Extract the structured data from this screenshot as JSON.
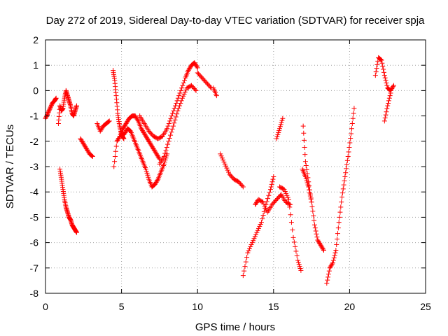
{
  "chart_data": {
    "type": "scatter",
    "title": "Day 272 of 2019, Sidereal Day-to-day VTEC variation (SDTVAR) for receiver spja",
    "xlabel": "GPS time / hours",
    "ylabel": "SDTVAR / TECUs",
    "xlim": [
      0,
      25
    ],
    "ylim": [
      -8,
      2
    ],
    "xticks": [
      "0",
      "5",
      "10",
      "15",
      "20",
      "25"
    ],
    "yticks": [
      "2",
      "1",
      "0",
      "-1",
      "-2",
      "-3",
      "-4",
      "-5",
      "-6",
      "-7",
      "-8"
    ],
    "grid": true,
    "marker": "+",
    "color": "#ff0000",
    "series": [
      {
        "name": "s1",
        "x": [
          0.0,
          0.15,
          0.3,
          0.45,
          0.6,
          0.7
        ],
        "y": [
          -1.1,
          -0.9,
          -0.7,
          -0.5,
          -0.4,
          -0.3
        ]
      },
      {
        "name": "s2",
        "x": [
          0.85,
          0.95,
          1.05,
          1.15,
          1.25,
          1.35,
          1.45,
          1.55,
          1.65,
          1.75,
          1.85,
          1.95,
          2.05
        ],
        "y": [
          -1.3,
          -0.6,
          -0.8,
          -0.7,
          -0.3,
          0.0,
          -0.2,
          -0.4,
          -0.6,
          -0.9,
          -1.0,
          -0.8,
          -0.6
        ]
      },
      {
        "name": "s3",
        "x": [
          0.95,
          1.05,
          1.15,
          1.25,
          1.35,
          1.45,
          1.55,
          1.65,
          1.75,
          1.85,
          1.95,
          2.05
        ],
        "y": [
          -3.1,
          -3.5,
          -3.9,
          -4.3,
          -4.6,
          -4.8,
          -5.0,
          -5.1,
          -5.3,
          -5.4,
          -5.5,
          -5.6
        ]
      },
      {
        "name": "s4",
        "x": [
          2.3,
          2.5,
          2.7,
          2.9,
          3.1
        ],
        "y": [
          -1.9,
          -2.1,
          -2.3,
          -2.5,
          -2.6
        ]
      },
      {
        "name": "s5",
        "x": [
          3.4,
          3.6,
          3.8,
          4.0,
          4.2
        ],
        "y": [
          -1.3,
          -1.6,
          -1.4,
          -1.3,
          -1.2
        ]
      },
      {
        "name": "s6",
        "x": [
          4.45,
          4.55,
          4.65,
          4.75,
          4.85,
          4.95,
          5.05,
          5.15
        ],
        "y": [
          0.8,
          0.4,
          -0.2,
          -0.9,
          -1.3,
          -1.6,
          -1.8,
          -1.9
        ]
      },
      {
        "name": "s7",
        "x": [
          4.5,
          4.7,
          4.9,
          5.1,
          5.3,
          5.5,
          5.7,
          5.9,
          6.1,
          6.3,
          6.5,
          6.7,
          6.9,
          7.1,
          7.3,
          7.5
        ],
        "y": [
          -3.0,
          -2.0,
          -1.8,
          -1.5,
          -1.3,
          -1.1,
          -1.0,
          -1.0,
          -1.2,
          -1.5,
          -1.7,
          -1.9,
          -2.1,
          -2.3,
          -2.5,
          -2.7
        ]
      },
      {
        "name": "s8",
        "x": [
          5.0,
          5.2,
          5.4,
          5.6,
          5.8,
          6.0,
          6.2,
          6.4,
          6.6,
          6.8,
          7.0,
          7.2,
          7.4,
          7.6,
          7.8,
          8.0
        ],
        "y": [
          -1.8,
          -1.7,
          -1.5,
          -1.6,
          -1.9,
          -2.2,
          -2.5,
          -2.8,
          -3.1,
          -3.5,
          -3.8,
          -3.7,
          -3.5,
          -3.2,
          -2.9,
          -2.5
        ]
      },
      {
        "name": "s9",
        "x": [
          6.2,
          6.5,
          6.8,
          7.1,
          7.4,
          7.7,
          8.0,
          8.3,
          8.6,
          8.9,
          9.2,
          9.4,
          9.6,
          9.8,
          10.0
        ],
        "y": [
          -1.0,
          -1.3,
          -1.6,
          -1.8,
          -1.9,
          -1.8,
          -1.5,
          -1.0,
          -0.5,
          0.0,
          0.5,
          0.8,
          1.0,
          1.1,
          0.9
        ]
      },
      {
        "name": "s10",
        "x": [
          7.5,
          7.8,
          8.1,
          8.4,
          8.7,
          9.0,
          9.3,
          9.6,
          9.9
        ],
        "y": [
          -2.9,
          -2.6,
          -2.0,
          -1.4,
          -0.8,
          -0.3,
          0.1,
          0.2,
          0.0
        ]
      },
      {
        "name": "s11",
        "x": [
          10.0,
          10.3,
          10.6,
          10.9
        ],
        "y": [
          0.7,
          0.5,
          0.3,
          0.1
        ]
      },
      {
        "name": "s12",
        "x": [
          11.05,
          11.25
        ],
        "y": [
          0.1,
          -0.2
        ]
      },
      {
        "name": "s13",
        "x": [
          11.5,
          11.8,
          12.1,
          12.4,
          12.7,
          13.0
        ],
        "y": [
          -2.5,
          -2.9,
          -3.3,
          -3.5,
          -3.6,
          -3.8
        ]
      },
      {
        "name": "s14",
        "x": [
          13.0,
          13.3,
          13.6,
          13.9,
          14.2,
          14.5,
          14.8,
          15.0
        ],
        "y": [
          -7.3,
          -6.4,
          -6.0,
          -5.6,
          -5.2,
          -4.5,
          -3.9,
          -3.4
        ]
      },
      {
        "name": "s15",
        "x": [
          13.8,
          14.0,
          14.3,
          14.6,
          14.9,
          15.2,
          15.5,
          15.8,
          16.1
        ],
        "y": [
          -4.5,
          -4.3,
          -4.4,
          -4.8,
          -4.5,
          -4.3,
          -4.1,
          -4.4,
          -4.5
        ]
      },
      {
        "name": "s16",
        "x": [
          15.2,
          15.4,
          15.6
        ],
        "y": [
          -1.9,
          -1.5,
          -1.1
        ]
      },
      {
        "name": "s17",
        "x": [
          15.4,
          15.7,
          16.0,
          16.3,
          16.6,
          16.8
        ],
        "y": [
          -3.8,
          -3.9,
          -4.3,
          -5.8,
          -6.7,
          -7.1
        ]
      },
      {
        "name": "s18",
        "x": [
          16.95,
          17.1,
          17.3,
          17.5,
          17.7,
          17.9,
          18.1,
          18.3
        ],
        "y": [
          -1.4,
          -2.8,
          -3.6,
          -4.4,
          -5.3,
          -5.9,
          -6.1,
          -6.3
        ]
      },
      {
        "name": "s19",
        "x": [
          16.9,
          17.1,
          17.3,
          17.5
        ],
        "y": [
          -3.1,
          -3.4,
          -3.8,
          -4.4
        ]
      },
      {
        "name": "s20",
        "x": [
          18.5,
          18.7,
          18.9,
          19.1,
          19.3,
          19.5,
          19.7,
          19.9,
          20.1,
          20.3
        ],
        "y": [
          -7.6,
          -7.0,
          -6.8,
          -6.3,
          -5.2,
          -4.2,
          -3.4,
          -2.6,
          -1.7,
          -0.7
        ]
      },
      {
        "name": "s21",
        "x": [
          21.7,
          21.9,
          22.1,
          22.3,
          22.5,
          22.7,
          22.9
        ],
        "y": [
          0.6,
          1.3,
          1.2,
          0.6,
          0.1,
          0.0,
          0.2
        ]
      },
      {
        "name": "s22",
        "x": [
          22.3,
          22.5,
          22.7
        ],
        "y": [
          -1.2,
          -0.6,
          -0.1
        ]
      }
    ]
  }
}
